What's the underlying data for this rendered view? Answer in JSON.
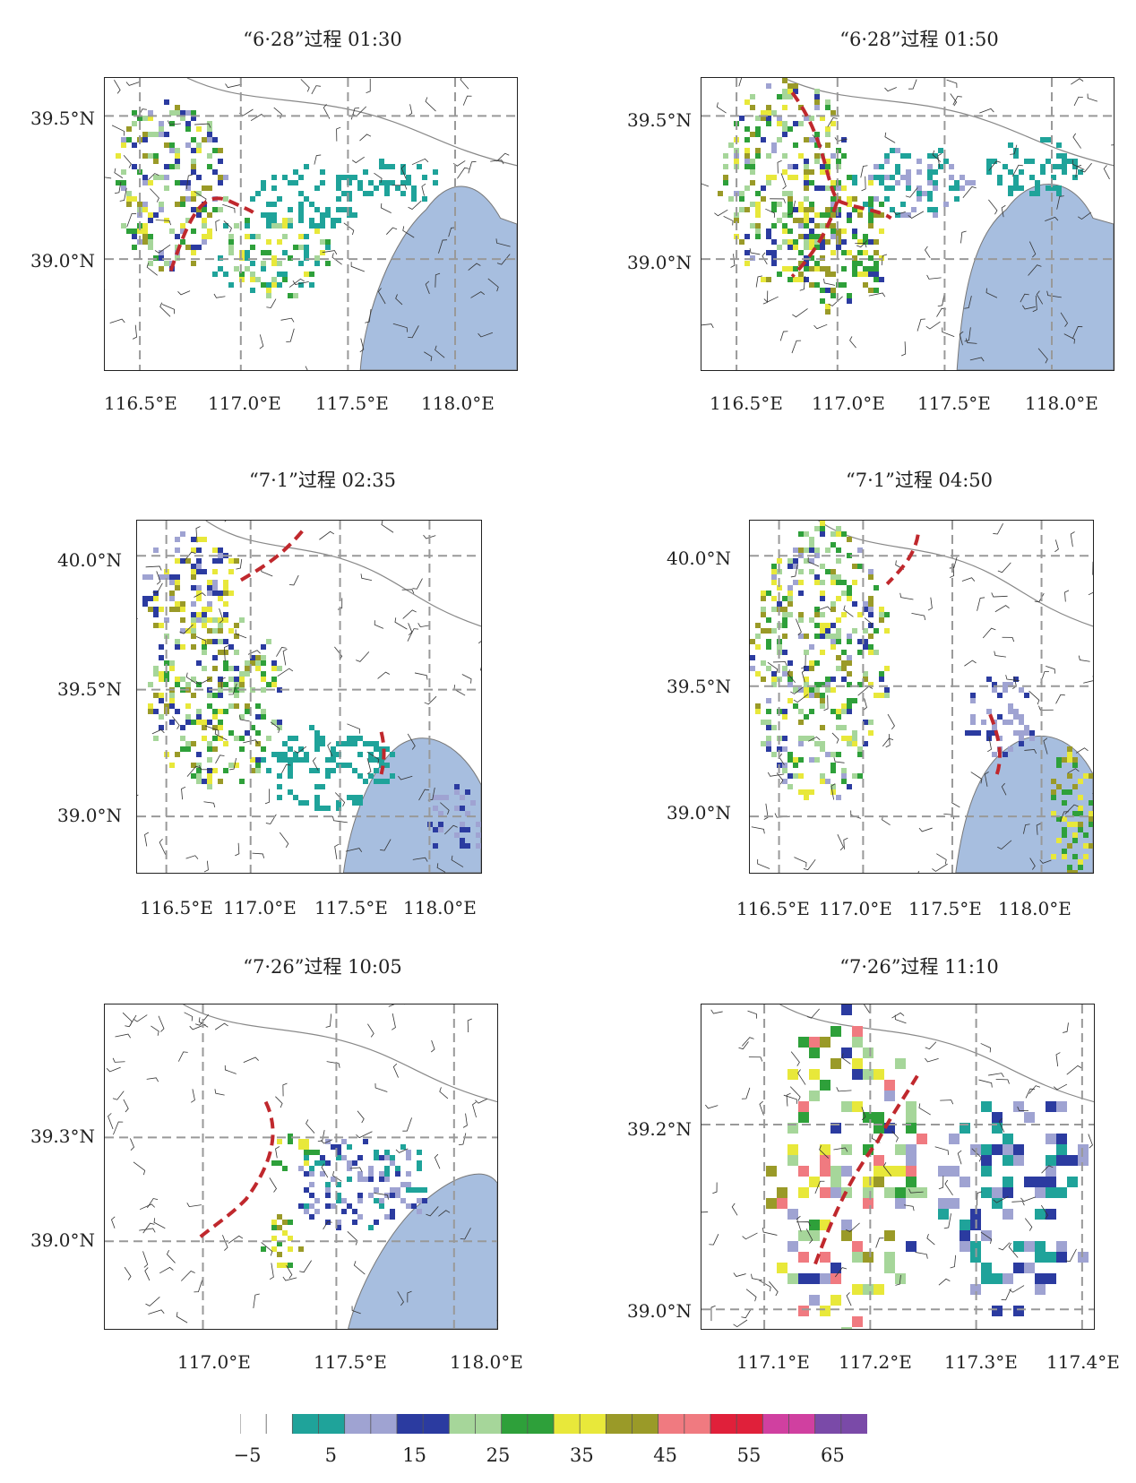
{
  "panels": [
    {
      "title": "“6·28”过程  01:30",
      "xticks": [
        "116.5°E",
        "117.0°E",
        "117.5°E",
        "118.0°E"
      ],
      "yticks": [
        "39.5°N",
        "39.0°N"
      ]
    },
    {
      "title": "“6·28”过程  01:50",
      "xticks": [
        "116.5°E",
        "117.0°E",
        "117.5°E",
        "118.0°E"
      ],
      "yticks": [
        "39.5°N",
        "39.0°N"
      ]
    },
    {
      "title": "“7·1”过程  02:35",
      "xticks": [
        "116.5°E",
        "117.0°E",
        "117.5°E",
        "118.0°E"
      ],
      "yticks": [
        "40.0°N",
        "39.5°N",
        "39.0°N"
      ]
    },
    {
      "title": "“7·1”过程  04:50",
      "xticks": [
        "116.5°E",
        "117.0°E",
        "117.5°E",
        "118.0°E"
      ],
      "yticks": [
        "40.0°N",
        "39.5°N",
        "39.0°N"
      ]
    },
    {
      "title": "“7·26”过程  10:05",
      "xticks": [
        "117.0°E",
        "117.5°E",
        "118.0°E"
      ],
      "yticks": [
        "39.3°N",
        "39.0°N"
      ]
    },
    {
      "title": "“7·26”过程  11:10",
      "xticks": [
        "117.1°E",
        "117.2°E",
        "117.3°E",
        "117.4°E"
      ],
      "yticks": [
        "39.2°N",
        "39.0°N"
      ]
    }
  ],
  "colorbar": {
    "labels": [
      "−5",
      "5",
      "15",
      "25",
      "35",
      "45",
      "55",
      "65"
    ],
    "colors": [
      "#ffffff",
      "#1fa39a",
      "#9fa3d2",
      "#2b3ba0",
      "#a6d69a",
      "#2ea03a",
      "#e8e83a",
      "#9a9a28",
      "#f07a80",
      "#e0203a",
      "#d040a0",
      "#7a4aa8"
    ]
  },
  "colors": {
    "sea": "#a7bedf",
    "frame": "#222222",
    "front": "#c0282d",
    "grid": "#999999"
  }
}
